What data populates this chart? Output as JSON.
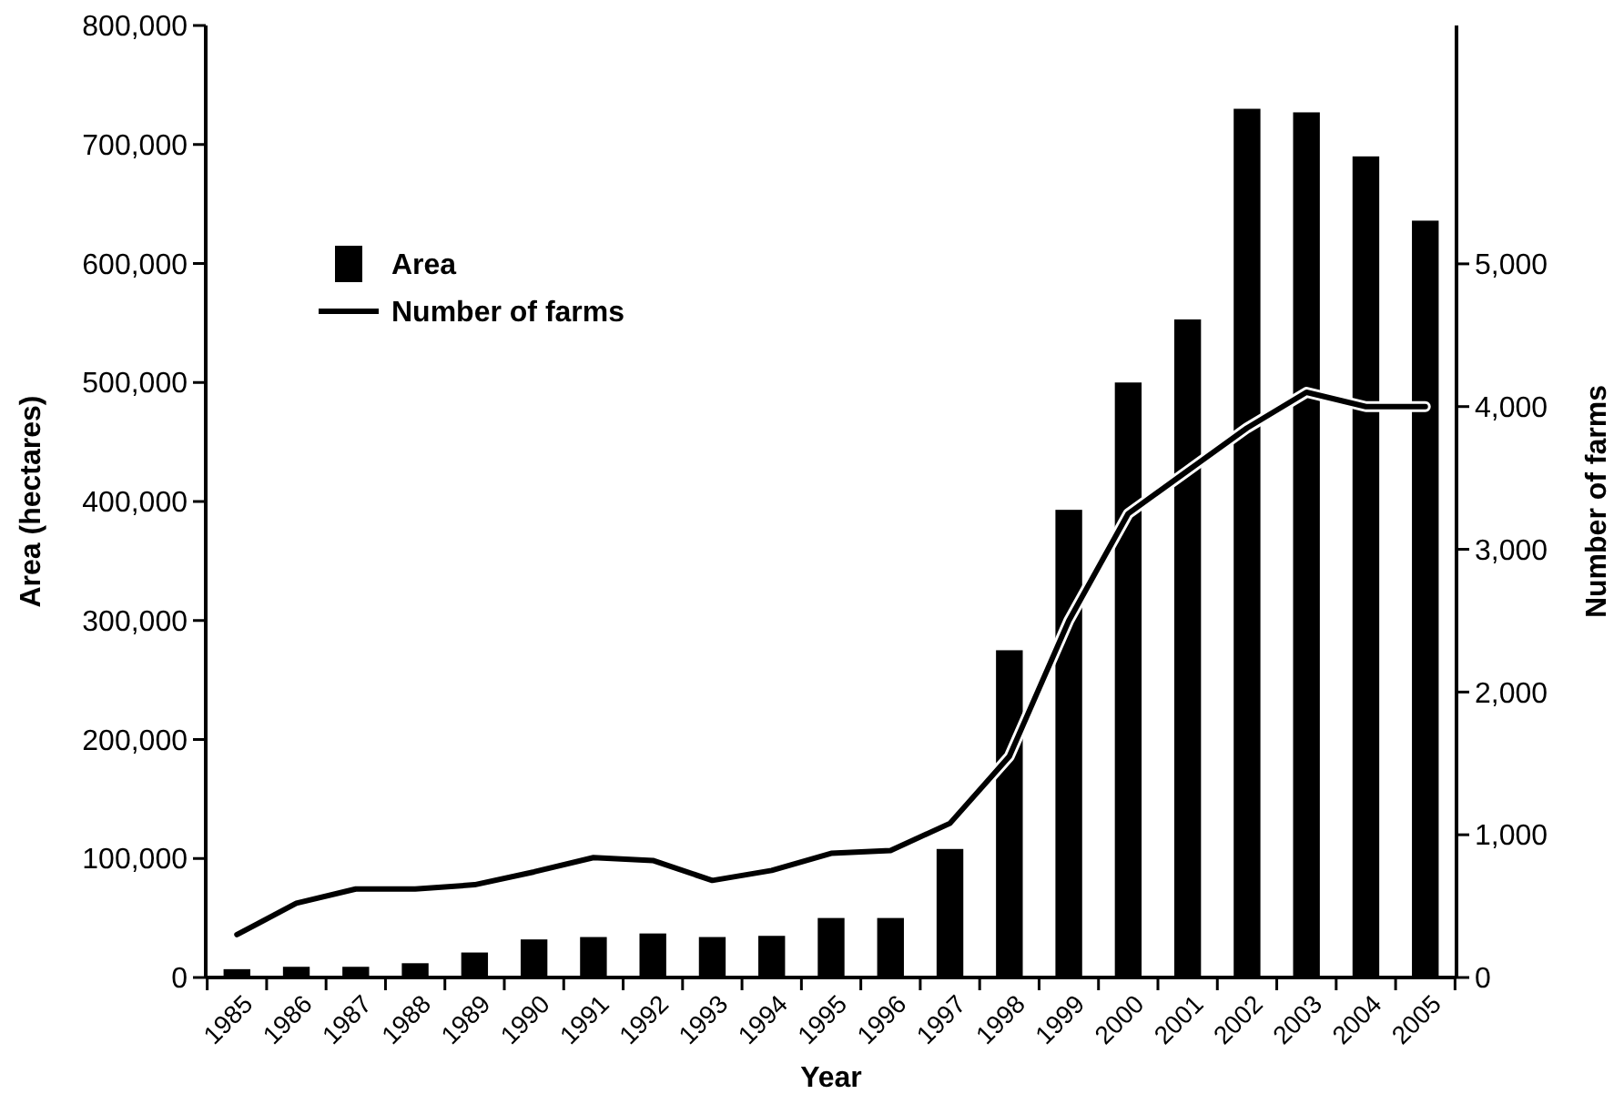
{
  "chart_data": {
    "type": "bar",
    "xlabel": "Year",
    "ylabel": "Area (hectares)",
    "y2label": "Number of farms",
    "categories": [
      "1985",
      "1986",
      "1987",
      "1988",
      "1989",
      "1990",
      "1991",
      "1992",
      "1993",
      "1994",
      "1995",
      "1996",
      "1997",
      "1998",
      "1999",
      "2000",
      "2001",
      "2002",
      "2003",
      "2004",
      "2005"
    ],
    "series": [
      {
        "name": "Area",
        "color": "#000000",
        "values": [
          7000,
          9000,
          9000,
          12000,
          21000,
          32000,
          34000,
          37000,
          34000,
          35000,
          50000,
          50000,
          108000,
          275000,
          393000,
          500000,
          553000,
          730000,
          727000,
          690000,
          636000
        ]
      },
      {
        "name": "Number of farms",
        "type": "line",
        "axis": "y2",
        "color": "#000000",
        "values": [
          300,
          520,
          620,
          620,
          650,
          740,
          840,
          820,
          680,
          750,
          870,
          890,
          1080,
          1550,
          2500,
          3250,
          3550,
          3850,
          4100,
          4000,
          4000
        ]
      }
    ],
    "ylim": [
      0,
      800000
    ],
    "yticks": [
      {
        "value": 0,
        "label": "0"
      },
      {
        "value": 100000,
        "label": "100,000"
      },
      {
        "value": 200000,
        "label": "200,000"
      },
      {
        "value": 300000,
        "label": "300,000"
      },
      {
        "value": 400000,
        "label": "400,000"
      },
      {
        "value": 500000,
        "label": "500,000"
      },
      {
        "value": 600000,
        "label": "600,000"
      },
      {
        "value": 700000,
        "label": "700,000"
      },
      {
        "value": 800000,
        "label": "800,000"
      }
    ],
    "y2lim": [
      0,
      6670
    ],
    "y2ticks": [
      {
        "value": 0,
        "label": "0"
      },
      {
        "value": 1000,
        "label": "1,000"
      },
      {
        "value": 2000,
        "label": "2,000"
      },
      {
        "value": 3000,
        "label": "3,000"
      },
      {
        "value": 4000,
        "label": "4,000"
      },
      {
        "value": 5000,
        "label": "5,000"
      }
    ],
    "legend": "top left",
    "grid": false,
    "marker": "none",
    "line_style": "solid"
  }
}
